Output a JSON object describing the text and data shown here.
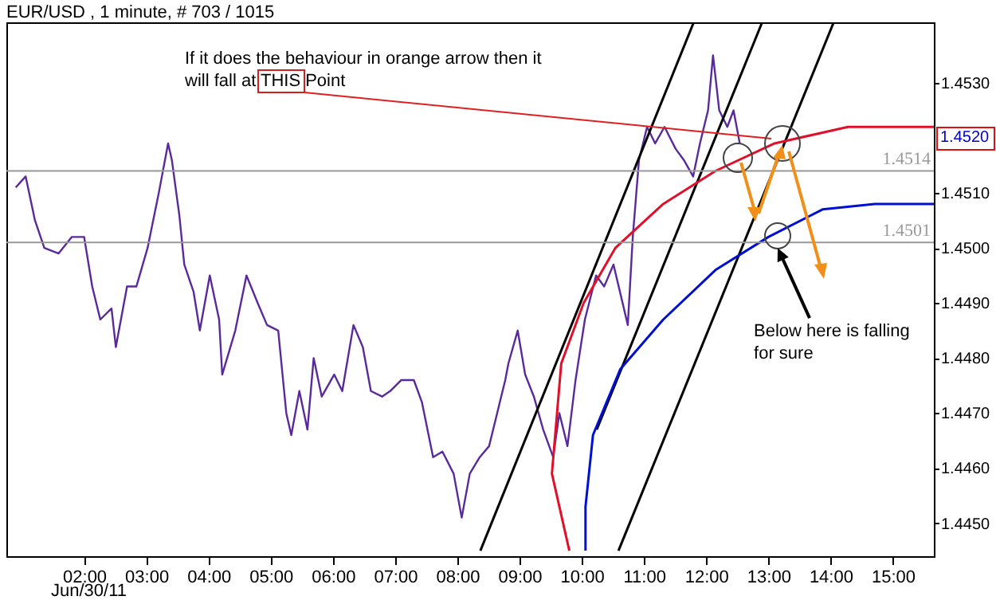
{
  "chart_data": {
    "type": "line",
    "title": "EUR/USD , 1 minute, # 703 / 1015",
    "xlim": [
      0.75,
      15.66
    ],
    "ylim": [
      1.4444,
      1.4541
    ],
    "xticks": [
      {
        "value": 2,
        "label": "02:00"
      },
      {
        "value": 3,
        "label": "03:00"
      },
      {
        "value": 4,
        "label": "04:00"
      },
      {
        "value": 5,
        "label": "05:00"
      },
      {
        "value": 6,
        "label": "06:00"
      },
      {
        "value": 7,
        "label": "07:00"
      },
      {
        "value": 8,
        "label": "08:00"
      },
      {
        "value": 9,
        "label": "09:00"
      },
      {
        "value": 10,
        "label": "10:00"
      },
      {
        "value": 11,
        "label": "11:00"
      },
      {
        "value": 12,
        "label": "12:00"
      },
      {
        "value": 13,
        "label": "13:00"
      },
      {
        "value": 14,
        "label": "14:00"
      },
      {
        "value": 15,
        "label": "15:00"
      }
    ],
    "yticks": [
      {
        "value": 1.445,
        "label": "1.4450"
      },
      {
        "value": 1.446,
        "label": "1.4460"
      },
      {
        "value": 1.447,
        "label": "1.4470"
      },
      {
        "value": 1.448,
        "label": "1.4480"
      },
      {
        "value": 1.449,
        "label": "1.4490"
      },
      {
        "value": 1.45,
        "label": "1.4500"
      },
      {
        "value": 1.451,
        "label": "1.4510"
      },
      {
        "value": 1.453,
        "label": "1.4530"
      }
    ],
    "series": [
      {
        "color": "#5a2a9a",
        "x": [
          0.9,
          1.06,
          1.21,
          1.36,
          1.59,
          1.8,
          2.0,
          2.13,
          2.26,
          2.44,
          2.51,
          2.69,
          2.84,
          3.02,
          3.2,
          3.35,
          3.41,
          3.53,
          3.61,
          3.76,
          3.86,
          4.02,
          4.17,
          4.22,
          4.43,
          4.61,
          4.79,
          4.94,
          5.12,
          5.25,
          5.33,
          5.46,
          5.59,
          5.69,
          5.82,
          6.02,
          6.15,
          6.33,
          6.48,
          6.61,
          6.79,
          6.92,
          7.1,
          7.3,
          7.43,
          7.61,
          7.76,
          7.94,
          8.07,
          8.2,
          8.36,
          8.51,
          8.64,
          8.77,
          8.82,
          8.97,
          9.09,
          9.23,
          9.38,
          9.54,
          9.64,
          9.77,
          9.9,
          10.05,
          10.23,
          10.36,
          10.51,
          10.74,
          10.82,
          10.92,
          11.05,
          11.18,
          11.33,
          11.51,
          11.64,
          11.79,
          11.9,
          12.03,
          12.11,
          12.21,
          12.34,
          12.44,
          12.54
        ],
        "values": [
          1.4511,
          1.4513,
          1.4505,
          1.45,
          1.4499,
          1.4502,
          1.4502,
          1.4493,
          1.4487,
          1.4489,
          1.4482,
          1.4493,
          1.4493,
          1.45,
          1.451,
          1.4519,
          1.4516,
          1.4506,
          1.4497,
          1.4492,
          1.4485,
          1.4495,
          1.4487,
          1.4477,
          1.4485,
          1.4495,
          1.449,
          1.4486,
          1.4485,
          1.447,
          1.4466,
          1.4474,
          1.4467,
          1.448,
          1.4473,
          1.4477,
          1.4474,
          1.4486,
          1.4482,
          1.4474,
          1.4473,
          1.4474,
          1.4476,
          1.4476,
          1.4472,
          1.4462,
          1.4463,
          1.4459,
          1.4451,
          1.4459,
          1.4462,
          1.4464,
          1.447,
          1.4476,
          1.4479,
          1.4485,
          1.4477,
          1.4473,
          1.4467,
          1.4462,
          1.447,
          1.4464,
          1.4476,
          1.4487,
          1.4495,
          1.4493,
          1.4497,
          1.4486,
          1.4502,
          1.4516,
          1.4522,
          1.4519,
          1.4522,
          1.4518,
          1.4516,
          1.4513,
          1.4519,
          1.4525,
          1.4535,
          1.4525,
          1.4522,
          1.4525,
          1.4519
        ]
      },
      {
        "color": "#000000",
        "x": [
          8.37,
          11.8
        ],
        "values": [
          1.4445,
          1.4541
        ]
      },
      {
        "color": "#000000",
        "x": [
          10.24,
          12.9
        ],
        "values": [
          1.4467,
          1.4541
        ]
      },
      {
        "color": "#000000",
        "x": [
          10.59,
          14.05
        ],
        "values": [
          1.4445,
          1.4541
        ]
      },
      {
        "color": "#e0102a",
        "x": [
          9.8,
          9.52,
          9.67,
          10.03,
          10.54,
          11.31,
          12.15,
          13.1,
          14.28,
          14.71,
          15.66
        ],
        "values": [
          1.4445,
          1.4459,
          1.4479,
          1.449,
          1.45,
          1.4508,
          1.4514,
          1.4519,
          1.4522,
          1.4522,
          1.4522
        ]
      },
      {
        "color": "#0010d0",
        "x": [
          10.06,
          10.06,
          10.18,
          10.62,
          11.31,
          12.15,
          13.0,
          13.87,
          14.71,
          15.66
        ],
        "values": [
          1.4445,
          1.4453,
          1.4466,
          1.4478,
          1.4487,
          1.4496,
          1.4502,
          1.4507,
          1.4508,
          1.4508
        ]
      }
    ],
    "ref_lines": [
      {
        "axis": "y",
        "value": 1.4514,
        "label": "1.4514",
        "color": "#999999"
      },
      {
        "axis": "y",
        "value": 1.4501,
        "label": "1.4501",
        "color": "#999999"
      }
    ],
    "annotations": [
      "If it does the behaviour in orange arrow then it will fall at THIS Point",
      {
        "text": "Below here is falling for sure",
        "x": 13.15,
        "y": 1.45
      },
      "Jun/30/11",
      "1.4520"
    ]
  }
}
